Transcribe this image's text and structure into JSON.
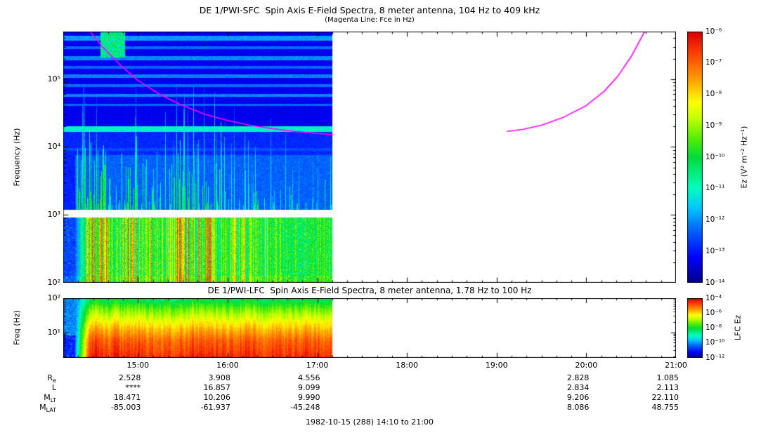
{
  "chart_data": [
    {
      "id": "sfc",
      "type": "heatmap",
      "title": "DE 1/PWI-SFC  Spin Axis E-Field Spectra, 8 meter antenna, 104 Hz to 409 kHz",
      "subtitle": "(Magenta Line: Fce in Hz)",
      "ylabel": "Frequency (Hz)",
      "colorbar_label": "Ez (V² m⁻² Hz⁻¹)",
      "x_range_hours": [
        14.1667,
        21.0
      ],
      "x_ticks": [
        {
          "hour": 15,
          "label": "15:00"
        },
        {
          "hour": 16,
          "label": "16:00"
        },
        {
          "hour": 17,
          "label": "17:00"
        },
        {
          "hour": 18,
          "label": "18:00"
        },
        {
          "hour": 19,
          "label": "19:00"
        },
        {
          "hour": 20,
          "label": "20:00"
        },
        {
          "hour": 21,
          "label": "21:00"
        }
      ],
      "y_log_range": [
        2.0,
        5.7
      ],
      "y_tick_exponents": [
        2,
        3,
        4,
        5
      ],
      "y_tick_labels": [
        "10²",
        "10³",
        "10⁴",
        "10⁵"
      ],
      "freq_range_label": "104 Hz to 409 kHz",
      "data_start_hour": 14.1667,
      "data_end_hour": 17.17,
      "colorbar": {
        "log_range": [
          -14,
          -6
        ],
        "tick_labels": [
          "10⁻⁶",
          "10⁻⁷",
          "10⁻⁸",
          "10⁻⁹",
          "10⁻¹⁰",
          "10⁻¹¹",
          "10⁻¹²",
          "10⁻¹³",
          "10⁻¹⁴"
        ]
      },
      "fce_line": {
        "color": "#ff00ff",
        "segments": [
          [
            [
              14.45,
              5.73
            ],
            [
              14.6,
              5.48
            ],
            [
              14.8,
              5.21
            ],
            [
              15.0,
              4.98
            ],
            [
              15.25,
              4.77
            ],
            [
              15.5,
              4.61
            ],
            [
              15.75,
              4.48
            ],
            [
              16.0,
              4.39
            ],
            [
              16.25,
              4.32
            ],
            [
              16.5,
              4.27
            ],
            [
              16.75,
              4.23
            ],
            [
              17.0,
              4.2
            ],
            [
              17.17,
              4.18
            ]
          ],
          [
            [
              19.12,
              4.23
            ],
            [
              19.3,
              4.26
            ],
            [
              19.5,
              4.32
            ],
            [
              19.75,
              4.44
            ],
            [
              20.0,
              4.61
            ],
            [
              20.2,
              4.82
            ],
            [
              20.35,
              5.04
            ],
            [
              20.5,
              5.33
            ],
            [
              20.65,
              5.7
            ]
          ]
        ]
      }
    },
    {
      "id": "lfc",
      "type": "heatmap",
      "title": "DE 1/PWI-LFC  Spin Axis E-Field Spectra, 8 meter antenna, 1.78 Hz to 100 Hz",
      "ylabel": "Freq (Hz)",
      "colorbar_label": "LFC Ez",
      "x_range_hours": [
        14.1667,
        21.0
      ],
      "y_log_range": [
        0.25,
        2.0
      ],
      "y_tick_exponents": [
        1,
        2
      ],
      "y_tick_labels": [
        "10¹",
        "10²"
      ],
      "freq_range_label": "1.78 Hz to 100 Hz",
      "data_start_hour": 14.1667,
      "data_end_hour": 17.17,
      "colorbar": {
        "log_range": [
          -12,
          -4
        ],
        "tick_labels": [
          "10⁻⁴",
          "10⁻⁶",
          "10⁻⁸",
          "10⁻¹⁰",
          "10⁻¹²"
        ]
      }
    }
  ],
  "footer": {
    "rows": [
      {
        "label": "R",
        "sub": "e",
        "values": [
          "2.528",
          "3.908",
          "4.556",
          "",
          "",
          "2.828",
          "1.085"
        ]
      },
      {
        "label": "L",
        "sub": "",
        "values": [
          "****",
          "16.857",
          "9.099",
          "",
          "",
          "2.834",
          "2.113"
        ]
      },
      {
        "label": "M",
        "sub": "LT",
        "values": [
          "18.471",
          "10.206",
          "9.990",
          "",
          "",
          "9.206",
          "22.110"
        ]
      },
      {
        "label": "M",
        "sub": "LAT",
        "values": [
          "-85.003",
          "-61.937",
          "-45.248",
          "",
          "",
          "8.086",
          "48.755"
        ]
      }
    ],
    "caption": "1982-10-15 (288) 14:10 to 21:00"
  }
}
